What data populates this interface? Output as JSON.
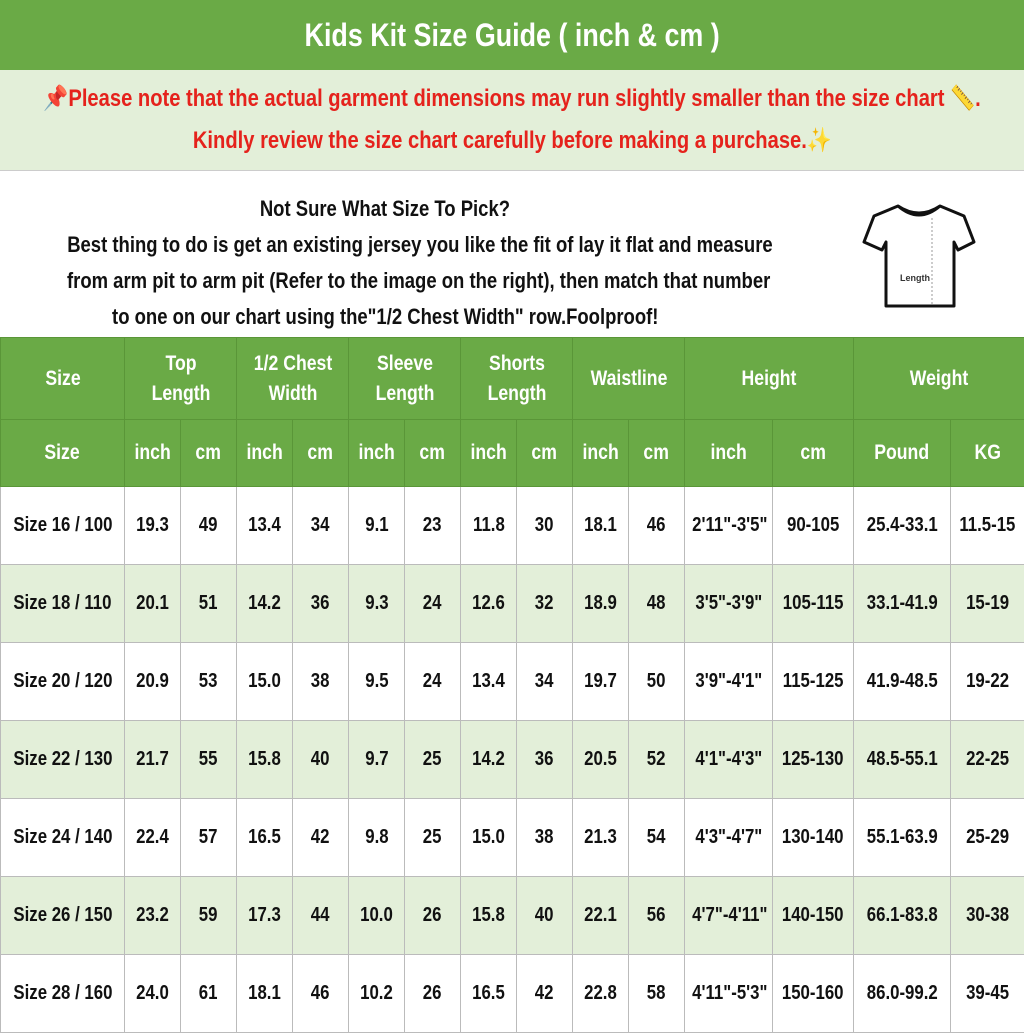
{
  "title": "Kids Kit Size Guide ( inch & cm )",
  "notice": {
    "line1": "📌Please note that the actual garment dimensions may run slightly smaller than the size chart 📏.",
    "line2": "Kindly review the size chart carefully before making a purchase.✨"
  },
  "info": {
    "heading": "Not Sure What Size To Pick?",
    "line1": "Best thing to do is get an existing jersey you like the fit of lay it flat and measure",
    "line2": "from arm pit to arm pit (Refer to the image on the right), then match that number",
    "line3": "to one on our chart using the\"1/2 Chest Width\" row.Foolproof!",
    "shirt_label": "Length",
    "shirt_icon": "t-shirt-icon"
  },
  "colors": {
    "header_green": "#6aaa46",
    "light_green": "#e3efd9",
    "notice_red": "#e5221c"
  },
  "table": {
    "group_headers": [
      "Size",
      "Top Length",
      "1/2 Chest Width",
      "Sleeve Length",
      "Shorts Length",
      "Waistline",
      "Height",
      "Weight"
    ],
    "sub_headers": [
      "Size",
      "inch",
      "cm",
      "inch",
      "cm",
      "inch",
      "cm",
      "inch",
      "cm",
      "inch",
      "cm",
      "inch",
      "cm",
      "Pound",
      "KG"
    ],
    "rows": [
      [
        "Size 16 / 100",
        "19.3",
        "49",
        "13.4",
        "34",
        "9.1",
        "23",
        "11.8",
        "30",
        "18.1",
        "46",
        "2'11\"-3'5\"",
        "90-105",
        "25.4-33.1",
        "11.5-15"
      ],
      [
        "Size 18 / 110",
        "20.1",
        "51",
        "14.2",
        "36",
        "9.3",
        "24",
        "12.6",
        "32",
        "18.9",
        "48",
        "3'5\"-3'9\"",
        "105-115",
        "33.1-41.9",
        "15-19"
      ],
      [
        "Size 20 / 120",
        "20.9",
        "53",
        "15.0",
        "38",
        "9.5",
        "24",
        "13.4",
        "34",
        "19.7",
        "50",
        "3'9\"-4'1\"",
        "115-125",
        "41.9-48.5",
        "19-22"
      ],
      [
        "Size 22 / 130",
        "21.7",
        "55",
        "15.8",
        "40",
        "9.7",
        "25",
        "14.2",
        "36",
        "20.5",
        "52",
        "4'1\"-4'3\"",
        "125-130",
        "48.5-55.1",
        "22-25"
      ],
      [
        "Size 24 / 140",
        "22.4",
        "57",
        "16.5",
        "42",
        "9.8",
        "25",
        "15.0",
        "38",
        "21.3",
        "54",
        "4'3\"-4'7\"",
        "130-140",
        "55.1-63.9",
        "25-29"
      ],
      [
        "Size 26 / 150",
        "23.2",
        "59",
        "17.3",
        "44",
        "10.0",
        "26",
        "15.8",
        "40",
        "22.1",
        "56",
        "4'7\"-4'11\"",
        "140-150",
        "66.1-83.8",
        "30-38"
      ],
      [
        "Size 28 / 160",
        "24.0",
        "61",
        "18.1",
        "46",
        "10.2",
        "26",
        "16.5",
        "42",
        "22.8",
        "58",
        "4'11\"-5'3\"",
        "150-160",
        "86.0-99.2",
        "39-45"
      ]
    ]
  }
}
